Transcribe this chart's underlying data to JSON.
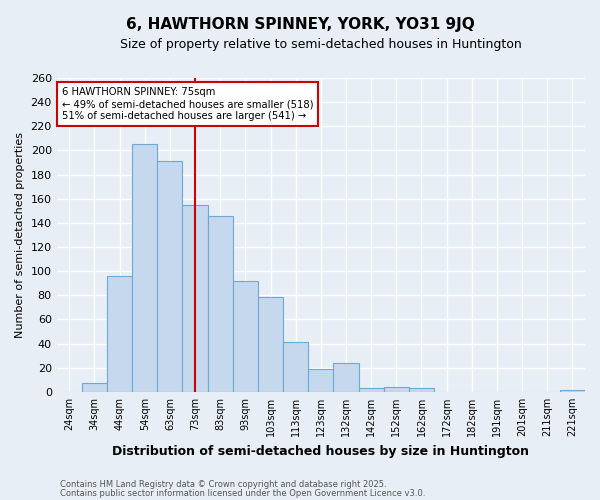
{
  "title": "6, HAWTHORN SPINNEY, YORK, YO31 9JQ",
  "subtitle": "Size of property relative to semi-detached houses in Huntington",
  "xlabel": "Distribution of semi-detached houses by size in Huntington",
  "ylabel": "Number of semi-detached properties",
  "categories": [
    "24sqm",
    "34sqm",
    "44sqm",
    "54sqm",
    "63sqm",
    "73sqm",
    "83sqm",
    "93sqm",
    "103sqm",
    "113sqm",
    "123sqm",
    "132sqm",
    "142sqm",
    "152sqm",
    "162sqm",
    "172sqm",
    "182sqm",
    "191sqm",
    "201sqm",
    "211sqm",
    "221sqm"
  ],
  "values": [
    0,
    7,
    96,
    205,
    191,
    155,
    146,
    92,
    79,
    41,
    19,
    24,
    3,
    4,
    3,
    0,
    0,
    0,
    0,
    0,
    2
  ],
  "bar_color": "#c5d8ee",
  "bar_edge_color": "#6aaad4",
  "vline_x": 5,
  "vline_color": "#cc0000",
  "annotation_title": "6 HAWTHORN SPINNEY: 75sqm",
  "annotation_line2": "← 49% of semi-detached houses are smaller (518)",
  "annotation_line3": "51% of semi-detached houses are larger (541) →",
  "annotation_box_color": "#ffffff",
  "annotation_box_edge": "#cc0000",
  "ylim": [
    0,
    260
  ],
  "yticks": [
    0,
    20,
    40,
    60,
    80,
    100,
    120,
    140,
    160,
    180,
    200,
    220,
    240,
    260
  ],
  "footnote1": "Contains HM Land Registry data © Crown copyright and database right 2025.",
  "footnote2": "Contains public sector information licensed under the Open Government Licence v3.0.",
  "bg_color": "#e8eef5",
  "plot_bg_color": "#e8eef5",
  "grid_color": "#ffffff"
}
